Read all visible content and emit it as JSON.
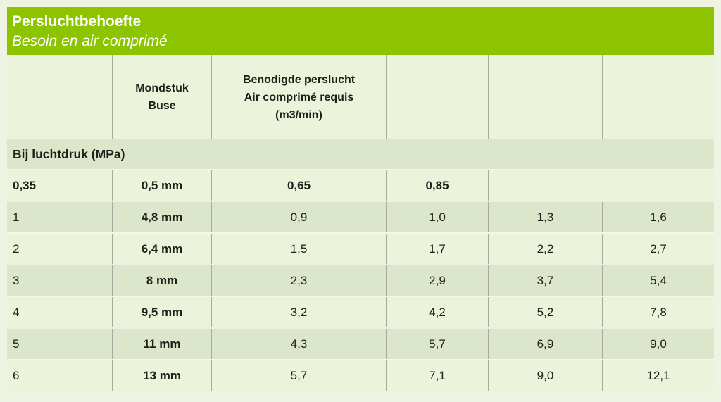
{
  "title_bar": {
    "title": "Persluchtbehoefte",
    "subtitle": "Besoin en air comprimé"
  },
  "column_headers": {
    "nozzle_line1": "Mondstuk",
    "nozzle_line2": "Buse",
    "air_line1": "Benodigde perslucht",
    "air_line2": "Air comprimé requis",
    "air_line3": "(m3/min)"
  },
  "pressure_band_label": "Bij luchtdruk (MPa)",
  "rows": [
    {
      "c1": "0,35",
      "c2": "0,5 mm",
      "c3": "0,65",
      "c4": "0,85",
      "c5": "",
      "c6": ""
    },
    {
      "c1": "1",
      "c2": "4,8 mm",
      "c3": "0,9",
      "c4": "1,0",
      "c5": "1,3",
      "c6": "1,6"
    },
    {
      "c1": "2",
      "c2": "6,4 mm",
      "c3": "1,5",
      "c4": "1,7",
      "c5": "2,2",
      "c6": "2,7"
    },
    {
      "c1": "3",
      "c2": "8 mm",
      "c3": "2,3",
      "c4": "2,9",
      "c5": "3,7",
      "c6": "5,4"
    },
    {
      "c1": "4",
      "c2": "9,5 mm",
      "c3": "3,2",
      "c4": "4,2",
      "c5": "5,2",
      "c6": "7,8"
    },
    {
      "c1": "5",
      "c2": "11 mm",
      "c3": "4,3",
      "c4": "5,7",
      "c5": "6,9",
      "c6": "9,0"
    },
    {
      "c1": "6",
      "c2": "13 mm",
      "c3": "5,7",
      "c4": "7,1",
      "c5": "9,0",
      "c6": "12,1"
    }
  ],
  "colors": {
    "header_green": "#8cc400",
    "page_background": "#eef4e1",
    "row_light": "#ebf3da",
    "row_dark": "#dce6cb",
    "divider_gray": "#a7ab9e",
    "text": "#20201a",
    "title_text": "#ffffff"
  }
}
